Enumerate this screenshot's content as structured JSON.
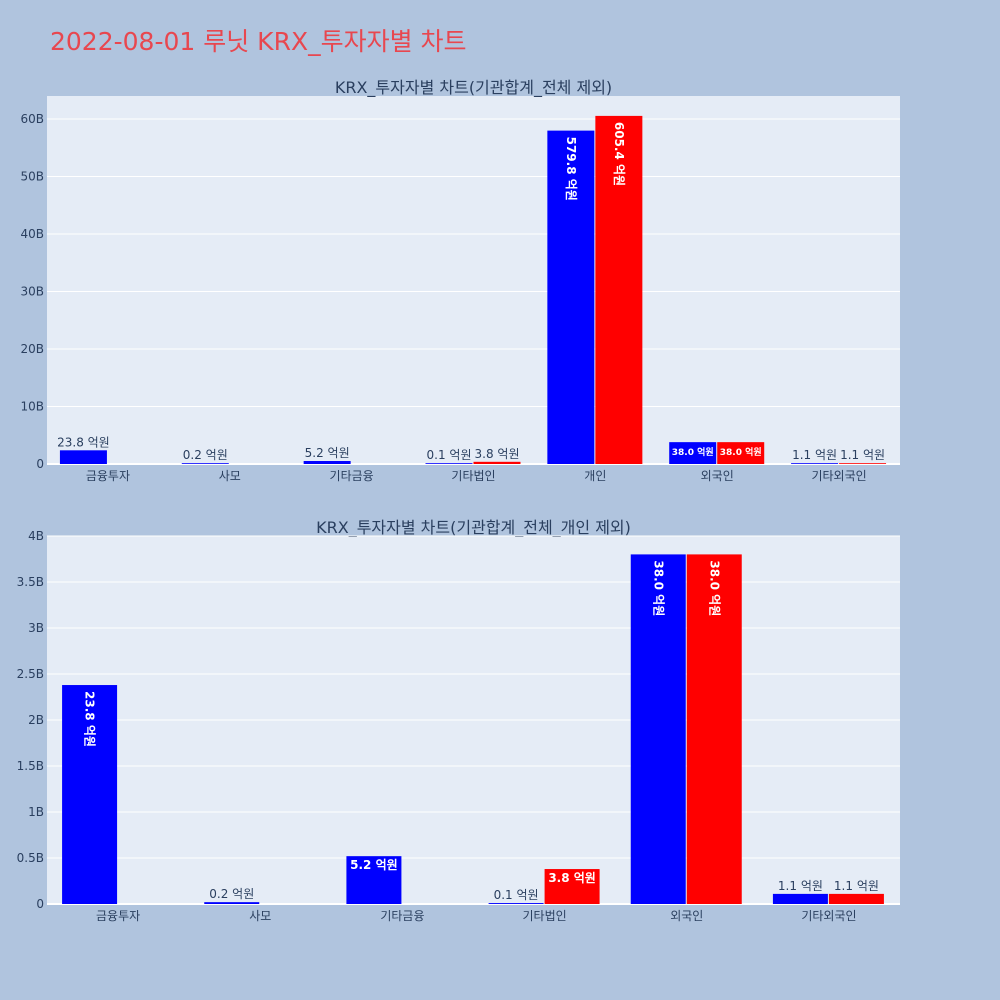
{
  "page": {
    "title": "2022-08-01 루닛 KRX_투자자별 차트",
    "background": "#b0c4de",
    "title_color": "#e8474f"
  },
  "series_colors": {
    "blue": "#0000ff",
    "red": "#ff0000"
  },
  "chart_data": [
    {
      "type": "bar",
      "title": "KRX_투자자별 차트(기관합계_전체 제외)",
      "categories": [
        "금융투자",
        "사모",
        "기타금융",
        "기타법인",
        "개인",
        "외국인",
        "기타외국인"
      ],
      "series": [
        {
          "color": "#0000ff",
          "values": [
            2.38,
            0.02,
            0.52,
            0.01,
            57.98,
            3.8,
            0.11
          ],
          "labels": [
            "23.8 억원",
            "0.2 억원",
            "5.2 억원",
            "0.1 억원",
            "579.8 억원",
            "38.0 억원",
            "1.1 억원"
          ]
        },
        {
          "color": "#ff0000",
          "values": [
            null,
            null,
            null,
            0.38,
            60.54,
            3.8,
            0.11
          ],
          "labels": [
            "",
            "",
            "",
            "3.8 억원",
            "605.4 억원",
            "38.0 억원",
            "1.1 억원"
          ]
        }
      ],
      "ylim": [
        0,
        64
      ],
      "yticks": [
        0,
        10,
        20,
        30,
        40,
        50,
        60
      ],
      "ytick_labels": [
        "0",
        "10B",
        "20B",
        "30B",
        "40B",
        "50B",
        "60B"
      ],
      "grid": true,
      "xlabel": "",
      "ylabel": ""
    },
    {
      "type": "bar",
      "title": "KRX_투자자별 차트(기관합계_전체_개인 제외)",
      "categories": [
        "금융투자",
        "사모",
        "기타금융",
        "기타법인",
        "외국인",
        "기타외국인"
      ],
      "series": [
        {
          "color": "#0000ff",
          "values": [
            2.38,
            0.02,
            0.52,
            0.01,
            3.8,
            0.11
          ],
          "labels": [
            "23.8 억원",
            "0.2 억원",
            "5.2 억원",
            "0.1 억원",
            "38.0 억원",
            "1.1 억원"
          ]
        },
        {
          "color": "#ff0000",
          "values": [
            null,
            null,
            null,
            0.38,
            3.8,
            0.11
          ],
          "labels": [
            "",
            "",
            "",
            "3.8 억원",
            "38.0 억원",
            "1.1 억원"
          ]
        }
      ],
      "ylim": [
        0,
        4
      ],
      "yticks": [
        0,
        0.5,
        1,
        1.5,
        2,
        2.5,
        3,
        3.5,
        4
      ],
      "ytick_labels": [
        "0",
        "0.5B",
        "1B",
        "1.5B",
        "2B",
        "2.5B",
        "3B",
        "3.5B",
        "4B"
      ],
      "grid": true,
      "xlabel": "",
      "ylabel": ""
    }
  ]
}
